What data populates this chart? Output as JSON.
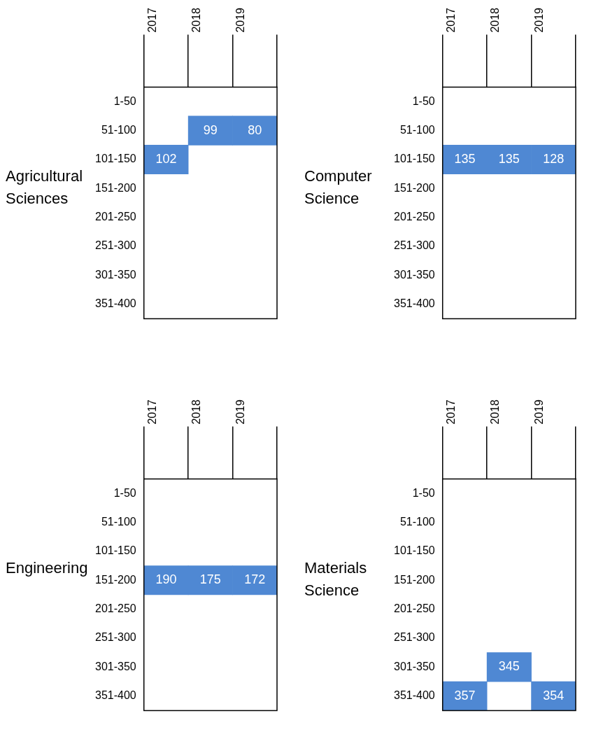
{
  "chart_data": [
    {
      "type": "heatmap",
      "data_labels": true,
      "title": "Agricultural Sciences",
      "categories": [
        "2017",
        "2018",
        "2019"
      ],
      "y_categories": [
        "1-50",
        "51-100",
        "101-150",
        "151-200",
        "201-250",
        "251-300",
        "301-350",
        "351-400"
      ],
      "color": "#4f88d3",
      "cells": [
        [
          null,
          null,
          null
        ],
        [
          null,
          99,
          80
        ],
        [
          102,
          null,
          null
        ],
        [
          null,
          null,
          null
        ],
        [
          null,
          null,
          null
        ],
        [
          null,
          null,
          null
        ],
        [
          null,
          null,
          null
        ],
        [
          null,
          null,
          null
        ]
      ]
    },
    {
      "type": "heatmap",
      "data_labels": true,
      "title": "Computer Science",
      "categories": [
        "2017",
        "2018",
        "2019"
      ],
      "y_categories": [
        "1-50",
        "51-100",
        "101-150",
        "151-200",
        "201-250",
        "251-300",
        "301-350",
        "351-400"
      ],
      "color": "#4f88d3",
      "cells": [
        [
          null,
          null,
          null
        ],
        [
          null,
          null,
          null
        ],
        [
          135,
          135,
          128
        ],
        [
          null,
          null,
          null
        ],
        [
          null,
          null,
          null
        ],
        [
          null,
          null,
          null
        ],
        [
          null,
          null,
          null
        ],
        [
          null,
          null,
          null
        ]
      ]
    },
    {
      "type": "heatmap",
      "data_labels": true,
      "title": "Engineering",
      "categories": [
        "2017",
        "2018",
        "2019"
      ],
      "y_categories": [
        "1-50",
        "51-100",
        "101-150",
        "151-200",
        "201-250",
        "251-300",
        "301-350",
        "351-400"
      ],
      "color": "#4f88d3",
      "cells": [
        [
          null,
          null,
          null
        ],
        [
          null,
          null,
          null
        ],
        [
          null,
          null,
          null
        ],
        [
          190,
          175,
          172
        ],
        [
          null,
          null,
          null
        ],
        [
          null,
          null,
          null
        ],
        [
          null,
          null,
          null
        ],
        [
          null,
          null,
          null
        ]
      ]
    },
    {
      "type": "heatmap",
      "data_labels": true,
      "title": "Materials Science",
      "categories": [
        "2017",
        "2018",
        "2019"
      ],
      "y_categories": [
        "1-50",
        "51-100",
        "101-150",
        "151-200",
        "201-250",
        "251-300",
        "301-350",
        "351-400"
      ],
      "color": "#4f88d3",
      "cells": [
        [
          null,
          null,
          null
        ],
        [
          null,
          null,
          null
        ],
        [
          null,
          null,
          null
        ],
        [
          null,
          null,
          null
        ],
        [
          null,
          null,
          null
        ],
        [
          null,
          null,
          null
        ],
        [
          null,
          345,
          null
        ],
        [
          357,
          null,
          354
        ]
      ]
    }
  ]
}
